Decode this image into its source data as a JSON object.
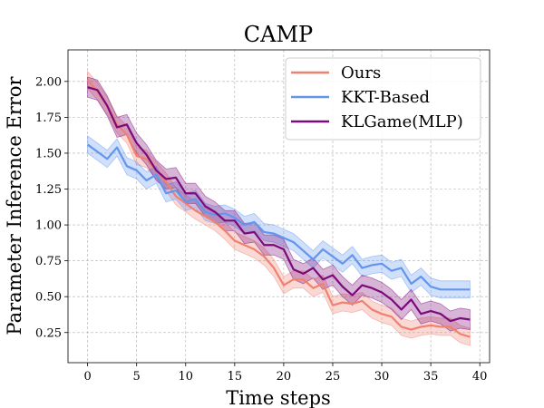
{
  "chart_data": {
    "type": "line",
    "title": "CAMP",
    "xlabel": "Time steps",
    "ylabel": "Parameter Inference Error",
    "xlim": [
      -2,
      41
    ],
    "ylim": [
      0.04,
      2.22
    ],
    "xticks": [
      0,
      5,
      10,
      15,
      20,
      25,
      30,
      35,
      40
    ],
    "yticks": [
      0.25,
      0.5,
      0.75,
      1.0,
      1.25,
      1.5,
      1.75,
      2.0
    ],
    "xtick_labels": [
      "0",
      "5",
      "10",
      "15",
      "20",
      "25",
      "30",
      "35",
      "40"
    ],
    "ytick_labels": [
      "0.25",
      "0.50",
      "0.75",
      "1.00",
      "1.25",
      "1.50",
      "1.75",
      "2.00"
    ],
    "grid": true,
    "legend_position": "top-right",
    "x": [
      0,
      1,
      2,
      3,
      4,
      5,
      6,
      7,
      8,
      9,
      10,
      11,
      12,
      13,
      14,
      15,
      16,
      17,
      18,
      19,
      20,
      21,
      22,
      23,
      24,
      25,
      26,
      27,
      28,
      29,
      30,
      31,
      32,
      33,
      34,
      35,
      36,
      37,
      38,
      39
    ],
    "series": [
      {
        "name": "Ours",
        "color": "#f08070",
        "values": [
          2.01,
          1.93,
          1.83,
          1.7,
          1.63,
          1.48,
          1.46,
          1.38,
          1.3,
          1.2,
          1.15,
          1.1,
          1.06,
          1.02,
          0.96,
          0.89,
          0.86,
          0.83,
          0.78,
          0.7,
          0.58,
          0.62,
          0.62,
          0.56,
          0.59,
          0.44,
          0.46,
          0.45,
          0.47,
          0.41,
          0.38,
          0.36,
          0.29,
          0.27,
          0.29,
          0.3,
          0.29,
          0.29,
          0.24,
          0.22
        ],
        "band_halfwidth": 0.06
      },
      {
        "name": "KKT-Based",
        "color": "#6495ed",
        "values": [
          1.56,
          1.51,
          1.46,
          1.54,
          1.41,
          1.38,
          1.31,
          1.35,
          1.22,
          1.24,
          1.16,
          1.18,
          1.09,
          1.07,
          1.08,
          1.05,
          1.0,
          1.02,
          0.95,
          0.94,
          0.91,
          0.88,
          0.82,
          0.76,
          0.83,
          0.78,
          0.73,
          0.79,
          0.7,
          0.72,
          0.73,
          0.68,
          0.7,
          0.59,
          0.64,
          0.57,
          0.55,
          0.55,
          0.55,
          0.55
        ],
        "band_halfwidth": 0.06
      },
      {
        "name": "KLGame(MLP)",
        "color": "#7b0a7b",
        "values": [
          1.96,
          1.94,
          1.83,
          1.68,
          1.7,
          1.57,
          1.49,
          1.38,
          1.32,
          1.33,
          1.22,
          1.22,
          1.13,
          1.09,
          1.03,
          1.03,
          0.94,
          0.95,
          0.86,
          0.86,
          0.83,
          0.69,
          0.66,
          0.7,
          0.62,
          0.65,
          0.57,
          0.51,
          0.58,
          0.56,
          0.53,
          0.48,
          0.41,
          0.48,
          0.38,
          0.4,
          0.38,
          0.33,
          0.35,
          0.34
        ],
        "band_halfwidth": 0.07
      }
    ]
  }
}
